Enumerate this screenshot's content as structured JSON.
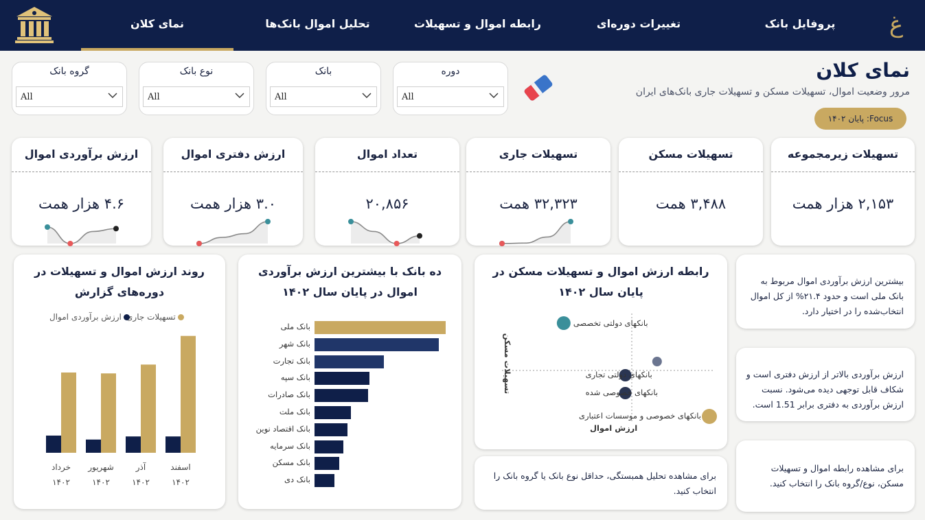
{
  "nav": {
    "tabs": [
      {
        "label": "نمای کلان",
        "active": true
      },
      {
        "label": "تحلیل اموال بانک‌ها",
        "active": false
      },
      {
        "label": "رابطه اموال و تسهیلات",
        "active": false
      },
      {
        "label": "تغییرات دوره‌ای",
        "active": false
      },
      {
        "label": "پروفایل بانک",
        "active": false
      }
    ],
    "brand_glyph": "غ"
  },
  "filters": [
    {
      "label": "گروه بانک",
      "value": "All"
    },
    {
      "label": "نوع بانک",
      "value": "All"
    },
    {
      "label": "بانک",
      "value": "All"
    },
    {
      "label": "دوره",
      "value": "All"
    }
  ],
  "header": {
    "title": "نمای کلان",
    "subtitle": "مرور وضعیت اموال، تسهیلات مسکن و تسهیلات جاری بانک‌های ایران",
    "focus": "Focus: پایان ۱۴۰۲"
  },
  "kpis": [
    {
      "title": "ارزش برآوردی اموال",
      "value": "۴.۶ هزار همت",
      "spark": [
        0.75,
        0.0,
        0.55,
        0.68
      ]
    },
    {
      "title": "ارزش دفتری اموال",
      "value": "۳.۰ هزار همت",
      "spark": [
        0.0,
        0.28,
        0.45,
        1.0
      ]
    },
    {
      "title": "تعداد اموال",
      "value": "۲۰,۸۵۶",
      "spark": [
        1.0,
        0.55,
        0.0,
        0.35
      ]
    },
    {
      "title": "تسهیلات جاری",
      "value": "۳۲,۳۲۳ همت",
      "spark": [
        0.0,
        0.02,
        0.3,
        1.0
      ]
    },
    {
      "title": "تسهیلات مسکن",
      "value": "۳,۴۸۸ همت",
      "spark": []
    },
    {
      "title": "تسهیلات زیرمجموعه",
      "value": "۲,۱۵۳ هزار همت",
      "spark": []
    }
  ],
  "colors": {
    "navy": "#0f1f49",
    "gold": "#c9a961",
    "teal": "#3a8f9a",
    "red": "#e8595a"
  },
  "trend": {
    "title": "روند ارزش اموال و تسهیلات در دوره‌های گزارش",
    "legend": [
      "تسهیلات جاری",
      "ارزش برآوردی اموال"
    ],
    "chart_data": {
      "type": "bar",
      "categories": [
        "خرداد ۱۴۰۲",
        "شهریور ۱۴۰۲",
        "آذر ۱۴۰۲",
        "اسفند ۱۴۰۲"
      ],
      "series": [
        {
          "name": "ارزش برآوردی اموال",
          "values": [
            3.9,
            3.0,
            3.7,
            3.7
          ]
        },
        {
          "name": "تسهیلات جاری",
          "values": [
            18.2,
            18.0,
            20.0,
            26.5
          ]
        }
      ]
    }
  },
  "topbanks": {
    "title": "ده بانک با بیشترین ارزش برآوردی اموال در پایان سال ۱۴۰۲",
    "chart_data": {
      "type": "bar",
      "orientation": "horizontal",
      "categories": [
        "بانک ملی",
        "بانک شهر",
        "بانک تجارت",
        "بانک سپه",
        "بانک صادرات",
        "بانک ملت",
        "بانک اقتصاد نوین",
        "بانک سرمایه",
        "بانک مسکن",
        "بانک دی"
      ],
      "values": [
        100,
        95,
        53,
        42,
        41,
        28,
        25,
        22,
        19,
        15
      ]
    }
  },
  "scatter": {
    "title": "رابطه ارزش اموال و تسهیلات مسکن در پایان سال ۱۴۰۲",
    "ylabel": "تسهیلات مسکن",
    "xlabel": "ارزش اموال",
    "chart_data": {
      "type": "scatter",
      "points": [
        {
          "label": "بانکهای دولتی تخصصی",
          "x": 0.22,
          "y": 0.73,
          "color": "#3a8f9a"
        },
        {
          "label": "",
          "x": 0.72,
          "y": 0.45,
          "color": "#6b7590"
        },
        {
          "label": "بانکهای دولتی تجاری",
          "x": 0.55,
          "y": 0.35,
          "color": "#2a3552"
        },
        {
          "label": "بانکهای خصوصی شده",
          "x": 0.55,
          "y": 0.22,
          "color": "#2a3552"
        },
        {
          "label": "بانکهای خصوصی و موسسات اعتباری",
          "x": 1.0,
          "y": 0.05,
          "color": "#c9a961"
        }
      ]
    }
  },
  "notes": {
    "n1": "بیشترین ارزش برآوردی اموال مربوط به بانک ملی است و حدود ۲۱.۴% از کل اموال انتخاب‌شده را در اختیار دارد.",
    "n2": "ارزش برآوردی بالاتر از ارزش دفتری است و شکاف قابل توجهی دیده می‌شود. نسبت ارزش برآوردی به دفتری برابر 1.51 است.",
    "n3": "برای مشاهده رابطه اموال و تسهیلات مسکن، نوع/گروه بانک را انتخاب کنید.",
    "n4": "برای مشاهده تحلیل همبستگی، حداقل نوع بانک یا گروه بانک را انتخاب کنید."
  }
}
